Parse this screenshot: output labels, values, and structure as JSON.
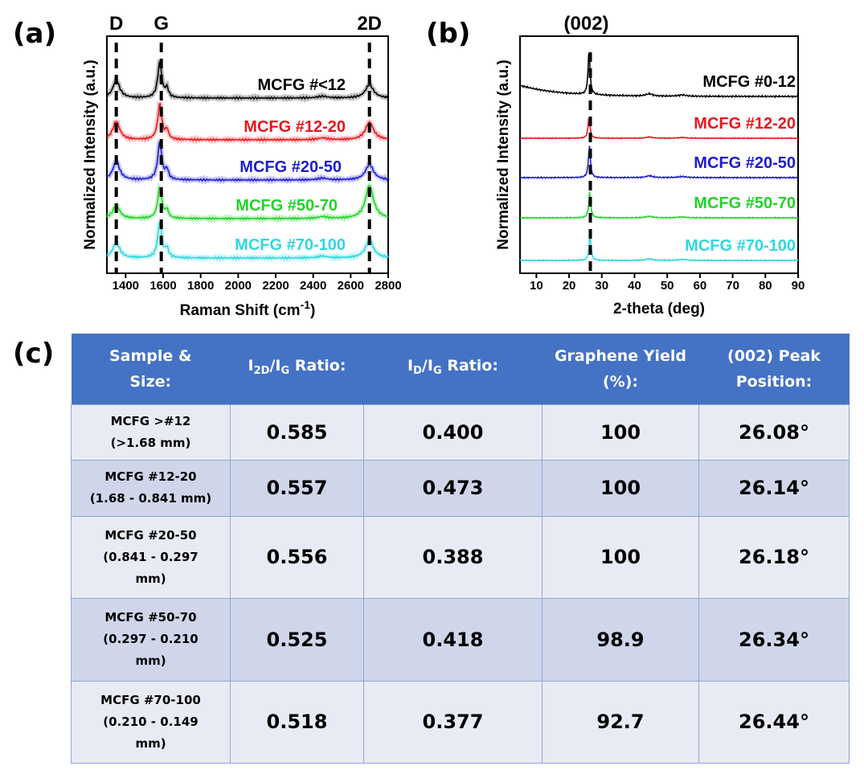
{
  "panels": {
    "a": "(a)",
    "b": "(b)",
    "c": "(c)"
  },
  "chart_data": [
    {
      "type": "line",
      "panel": "(a)",
      "xlabel_main": "Raman Shift (cm",
      "xlabel_sup": "-1",
      "xlabel_end": ")",
      "ylabel": "Normalized Intensity (a.u.)",
      "xlim": [
        1300,
        2800
      ],
      "xticks": [
        1400,
        1600,
        1800,
        2000,
        2200,
        2400,
        2600,
        2800
      ],
      "peak_labels": [
        {
          "label": "D",
          "x": 1350
        },
        {
          "label": "G",
          "x": 1590
        },
        {
          "label": "2D",
          "x": 2700
        }
      ],
      "series": [
        {
          "name": "MCFG #<12",
          "color": "#000000",
          "d": 0.4,
          "g": 0.8,
          "d2": 0.3
        },
        {
          "name": "MCFG #12-20",
          "color": "#e8161c",
          "d": 0.42,
          "g": 0.8,
          "d2": 0.4
        },
        {
          "name": "MCFG #20-50",
          "color": "#1c1ccf",
          "d": 0.42,
          "g": 0.85,
          "d2": 0.35
        },
        {
          "name": "MCFG #50-70",
          "color": "#22d22a",
          "d": 0.3,
          "g": 0.7,
          "d2": 0.75
        },
        {
          "name": "MCFG #70-100",
          "color": "#2fd7e0",
          "d": 0.35,
          "g": 0.8,
          "d2": 0.4
        }
      ]
    },
    {
      "type": "line",
      "panel": "(b)",
      "xlabel": "2-theta (deg)",
      "ylabel": "Normalized Intensity (a.u.)",
      "xlim": [
        5,
        90
      ],
      "xticks": [
        10,
        20,
        30,
        40,
        50,
        60,
        70,
        80,
        90
      ],
      "peak_labels": [
        {
          "label": "(002)",
          "x": 26.5
        }
      ],
      "series": [
        {
          "name": "MCFG #0-12",
          "color": "#000000",
          "peak": 26.1,
          "height": 1.0
        },
        {
          "name": "MCFG #12-20",
          "color": "#e8161c",
          "peak": 26.1,
          "height": 0.9
        },
        {
          "name": "MCFG #20-50",
          "color": "#1c1ccf",
          "peak": 26.2,
          "height": 0.9
        },
        {
          "name": "MCFG #50-70",
          "color": "#22d22a",
          "peak": 26.3,
          "height": 0.85
        },
        {
          "name": "MCFG #70-100",
          "color": "#2fd7e0",
          "peak": 26.4,
          "height": 0.8
        }
      ]
    },
    {
      "type": "table",
      "panel": "(c)",
      "headers": [
        {
          "main": "Sample &",
          "second": "Size:"
        },
        {
          "main": "I",
          "sub1": "2D",
          "mid": "/I",
          "sub2": "G",
          "end": " Ratio:"
        },
        {
          "main": "I",
          "sub1": "D",
          "mid": "/I",
          "sub2": "G",
          "end": " Ratio:"
        },
        {
          "main": "Graphene Yield",
          "second": "(%):"
        },
        {
          "main": "(002) Peak",
          "second": "Position:"
        }
      ],
      "rows": [
        {
          "sample": [
            "MCFG >#12",
            "(>1.68 mm)"
          ],
          "i2dig": "0.585",
          "idig": "0.400",
          "yield": "100",
          "peak": "26.08°"
        },
        {
          "sample": [
            "MCFG #12-20",
            "(1.68 - 0.841 mm)"
          ],
          "i2dig": "0.557",
          "idig": "0.473",
          "yield": "100",
          "peak": "26.14°"
        },
        {
          "sample": [
            "MCFG #20-50",
            "(0.841 - 0.297",
            "mm)"
          ],
          "i2dig": "0.556",
          "idig": "0.388",
          "yield": "100",
          "peak": "26.18°"
        },
        {
          "sample": [
            "MCFG #50-70",
            "(0.297 - 0.210",
            "mm)"
          ],
          "i2dig": "0.525",
          "idig": "0.418",
          "yield": "98.9",
          "peak": "26.34°"
        },
        {
          "sample": [
            "MCFG #70-100",
            "(0.210 - 0.149",
            "mm)"
          ],
          "i2dig": "0.518",
          "idig": "0.377",
          "yield": "92.7",
          "peak": "26.44°"
        }
      ]
    }
  ]
}
